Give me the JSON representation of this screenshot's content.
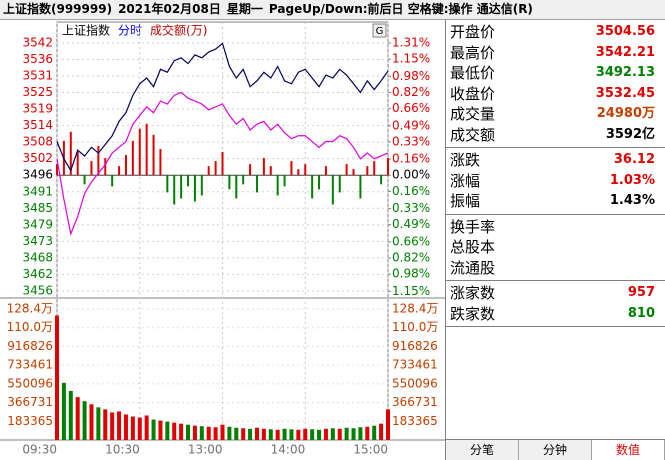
{
  "header": {
    "title": "上证指数(999999)",
    "date": "2021年02月08日",
    "weekday": "星期一",
    "hint": "PageUp/Down:前后日 空格键:操作 通达信(R)"
  },
  "chart_data": [
    {
      "type": "line",
      "legend": [
        {
          "text": "上证指数",
          "color": "#000000"
        },
        {
          "text": "分时",
          "color": "#0000ff"
        },
        {
          "text": "成交额(万)",
          "color": "#c00000"
        }
      ],
      "x": [
        0,
        5,
        10,
        15,
        20,
        25,
        30,
        35,
        40,
        45,
        50,
        55,
        60,
        65,
        70,
        75,
        80,
        85,
        90,
        95,
        100,
        105,
        110,
        115,
        120,
        125,
        130,
        135,
        140,
        145,
        150,
        155,
        160,
        165,
        170,
        175,
        180,
        185,
        190,
        195,
        200,
        205,
        210,
        215,
        220,
        225,
        230,
        235,
        240
      ],
      "series": [
        {
          "type": "line",
          "color": "#000060",
          "values": [
            3508,
            3502,
            3498,
            3505,
            3503,
            3506,
            3504,
            3507,
            3510,
            3515,
            3518,
            3524,
            3528,
            3530,
            3527,
            3533,
            3532,
            3536,
            3537,
            3535,
            3538,
            3537,
            3539,
            3540,
            3542,
            3534,
            3530,
            3533,
            3527,
            3529,
            3532,
            3530,
            3534,
            3529,
            3528,
            3532,
            3533,
            3530,
            3527,
            3531,
            3530,
            3533,
            3531,
            3528,
            3525,
            3529,
            3526,
            3529,
            3532.45
          ]
        },
        {
          "type": "line",
          "color": "#e000e0",
          "values": [
            3502,
            3488,
            3476,
            3482,
            3490,
            3494,
            3497,
            3500,
            3504,
            3506,
            3508,
            3514,
            3517,
            3520,
            3518,
            3522,
            3521,
            3524,
            3525,
            3523,
            3522,
            3521,
            3519,
            3520,
            3521,
            3517,
            3514,
            3516,
            3512,
            3514,
            3515,
            3512,
            3514,
            3511,
            3509,
            3510,
            3510,
            3508,
            3506,
            3508,
            3508,
            3510,
            3509,
            3506,
            3502,
            3504,
            3502,
            3503,
            3504
          ]
        },
        {
          "type": "bar",
          "axis": "y2",
          "values": [
            0.11,
            0.34,
            0.43,
            0.23,
            -0.09,
            0.14,
            0.29,
            0.17,
            -0.11,
            0.09,
            0.2,
            0.34,
            0.46,
            0.51,
            0.4,
            0.26,
            -0.17,
            -0.29,
            -0.23,
            -0.11,
            -0.26,
            -0.2,
            0.09,
            0.14,
            0.23,
            -0.14,
            -0.23,
            -0.09,
            0.11,
            -0.17,
            0.17,
            0.09,
            -0.2,
            -0.11,
            0.14,
            0.06,
            0.11,
            -0.23,
            -0.14,
            0.09,
            -0.29,
            -0.17,
            0.11,
            0.06,
            -0.23,
            0.09,
            0.14,
            -0.09,
            0.17
          ]
        }
      ],
      "xlim": [
        0,
        240
      ],
      "ylim": [
        3453.8,
        3549.4
      ],
      "yticks": [
        {
          "value": 3542.15,
          "label": "3542"
        },
        {
          "value": 3536.42,
          "label": "3536"
        },
        {
          "value": 3530.69,
          "label": "3531"
        },
        {
          "value": 3524.96,
          "label": "3525"
        },
        {
          "value": 3519.24,
          "label": "3519"
        },
        {
          "value": 3513.51,
          "label": "3514"
        },
        {
          "value": 3507.78,
          "label": "3508"
        },
        {
          "value": 3502.06,
          "label": "3502"
        },
        {
          "value": 3496.33,
          "label": "3496"
        },
        {
          "value": 3490.6,
          "label": "3491"
        },
        {
          "value": 3484.88,
          "label": "3485"
        },
        {
          "value": 3479.15,
          "label": "3479"
        },
        {
          "value": 3473.42,
          "label": "3473"
        },
        {
          "value": 3467.7,
          "label": "3468"
        },
        {
          "value": 3461.97,
          "label": "3462"
        },
        {
          "value": 3456.24,
          "label": "3456"
        }
      ],
      "y2lim": [
        -1.216,
        1.518
      ],
      "y2ticks": [
        {
          "value": 1.31,
          "label": "1.31%"
        },
        {
          "value": 1.15,
          "label": "1.15%"
        },
        {
          "value": 0.98,
          "label": "0.98%"
        },
        {
          "value": 0.82,
          "label": "0.82%"
        },
        {
          "value": 0.66,
          "label": "0.66%"
        },
        {
          "value": 0.49,
          "label": "0.49%"
        },
        {
          "value": 0.33,
          "label": "0.33%"
        },
        {
          "value": 0.16,
          "label": "0.16%"
        },
        {
          "value": 0,
          "label": "0.00%"
        },
        {
          "value": -0.16,
          "label": "0.16%"
        },
        {
          "value": -0.33,
          "label": "0.33%"
        },
        {
          "value": -0.49,
          "label": "0.49%"
        },
        {
          "value": -0.66,
          "label": "0.66%"
        },
        {
          "value": -0.82,
          "label": "0.82%"
        },
        {
          "value": -0.98,
          "label": "0.98%"
        },
        {
          "value": -1.15,
          "label": "1.15%"
        }
      ],
      "grid": true,
      "up_color": "#e00000",
      "down_color": "#008000",
      "flat_color": "#000000"
    },
    {
      "type": "bar",
      "x": [
        0,
        5,
        10,
        15,
        20,
        25,
        30,
        35,
        40,
        45,
        50,
        55,
        60,
        65,
        70,
        75,
        80,
        85,
        90,
        95,
        100,
        105,
        110,
        115,
        120,
        125,
        130,
        135,
        140,
        145,
        150,
        155,
        160,
        165,
        170,
        175,
        180,
        185,
        190,
        195,
        200,
        205,
        210,
        215,
        220,
        225,
        230,
        235,
        240
      ],
      "values": [
        1220000,
        560000,
        480000,
        420000,
        380000,
        350000,
        320000,
        300000,
        270000,
        280000,
        250000,
        230000,
        220000,
        240000,
        200000,
        190000,
        180000,
        170000,
        160000,
        150000,
        140000,
        135000,
        130000,
        125000,
        150000,
        130000,
        120000,
        115000,
        110000,
        120000,
        110000,
        105000,
        100000,
        110000,
        105000,
        100000,
        110000,
        105000,
        100000,
        110000,
        115000,
        110000,
        120000,
        115000,
        125000,
        130000,
        140000,
        160000,
        300000
      ],
      "xlim": [
        0,
        240
      ],
      "xticks": [
        {
          "value": 0,
          "label": "09:30"
        },
        {
          "value": 60,
          "label": "10:30"
        },
        {
          "value": 120,
          "label": "13:00"
        },
        {
          "value": 180,
          "label": "14:00"
        },
        {
          "value": 240,
          "label": "15:00"
        }
      ],
      "ylim": [
        0,
        1391360
      ],
      "yticks": [
        {
          "value": 1283555,
          "label": "128.4万"
        },
        {
          "value": 1100190,
          "label": "110.0万"
        },
        916826,
        733461,
        550096,
        366731,
        183365
      ],
      "tick_color": "#c04000",
      "up_color": "#e00000",
      "down_color": "#008000"
    }
  ],
  "quote": {
    "groups": [
      [
        {
          "label": "开盘价",
          "value": "3504.56",
          "color": "#e00000"
        },
        {
          "label": "最高价",
          "value": "3542.21",
          "color": "#e00000"
        },
        {
          "label": "最低价",
          "value": "3492.13",
          "color": "#008000"
        },
        {
          "label": "收盘价",
          "value": "3532.45",
          "color": "#e00000"
        },
        {
          "label": "成交量",
          "value": "24980万",
          "color": "#c04000"
        },
        {
          "label": "成交额",
          "value": "3592亿",
          "color": "#000000"
        }
      ],
      [
        {
          "label": "涨跌",
          "value": "36.12",
          "color": "#e00000"
        },
        {
          "label": "涨幅",
          "value": "1.03%",
          "color": "#e00000"
        },
        {
          "label": "振幅",
          "value": "1.43%",
          "color": "#000000"
        }
      ],
      [
        {
          "label": "换手率"
        },
        {
          "label": "总股本"
        },
        {
          "label": "流通股"
        }
      ],
      [
        {
          "label": "涨家数",
          "value": "957",
          "color": "#e00000"
        },
        {
          "label": "跌家数",
          "value": "810",
          "color": "#008000"
        }
      ]
    ]
  },
  "tabs": [
    {
      "label": "分笔"
    },
    {
      "label": "分钟"
    },
    {
      "label": "数值",
      "active": true
    }
  ]
}
